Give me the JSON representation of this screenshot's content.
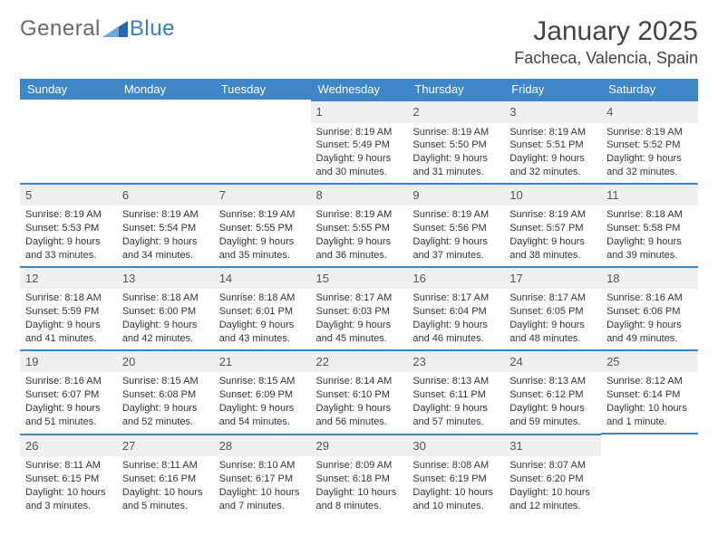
{
  "brand": {
    "part1": "General",
    "part2": "Blue"
  },
  "title": "January 2025",
  "location": "Facheca, Valencia, Spain",
  "colors": {
    "header_bg": "#3f86c7",
    "header_text": "#ffffff",
    "daynum_bg": "#eef0f2",
    "row_border": "#3f86c7",
    "text": "#333333",
    "logo_grey": "#6a6a6a",
    "logo_blue": "#3a7fc4"
  },
  "weekdays": [
    "Sunday",
    "Monday",
    "Tuesday",
    "Wednesday",
    "Thursday",
    "Friday",
    "Saturday"
  ],
  "weeks": [
    [
      null,
      null,
      null,
      {
        "n": "1",
        "sr": "Sunrise: 8:19 AM",
        "ss": "Sunset: 5:49 PM",
        "d1": "Daylight: 9 hours",
        "d2": "and 30 minutes."
      },
      {
        "n": "2",
        "sr": "Sunrise: 8:19 AM",
        "ss": "Sunset: 5:50 PM",
        "d1": "Daylight: 9 hours",
        "d2": "and 31 minutes."
      },
      {
        "n": "3",
        "sr": "Sunrise: 8:19 AM",
        "ss": "Sunset: 5:51 PM",
        "d1": "Daylight: 9 hours",
        "d2": "and 32 minutes."
      },
      {
        "n": "4",
        "sr": "Sunrise: 8:19 AM",
        "ss": "Sunset: 5:52 PM",
        "d1": "Daylight: 9 hours",
        "d2": "and 32 minutes."
      }
    ],
    [
      {
        "n": "5",
        "sr": "Sunrise: 8:19 AM",
        "ss": "Sunset: 5:53 PM",
        "d1": "Daylight: 9 hours",
        "d2": "and 33 minutes."
      },
      {
        "n": "6",
        "sr": "Sunrise: 8:19 AM",
        "ss": "Sunset: 5:54 PM",
        "d1": "Daylight: 9 hours",
        "d2": "and 34 minutes."
      },
      {
        "n": "7",
        "sr": "Sunrise: 8:19 AM",
        "ss": "Sunset: 5:55 PM",
        "d1": "Daylight: 9 hours",
        "d2": "and 35 minutes."
      },
      {
        "n": "8",
        "sr": "Sunrise: 8:19 AM",
        "ss": "Sunset: 5:55 PM",
        "d1": "Daylight: 9 hours",
        "d2": "and 36 minutes."
      },
      {
        "n": "9",
        "sr": "Sunrise: 8:19 AM",
        "ss": "Sunset: 5:56 PM",
        "d1": "Daylight: 9 hours",
        "d2": "and 37 minutes."
      },
      {
        "n": "10",
        "sr": "Sunrise: 8:19 AM",
        "ss": "Sunset: 5:57 PM",
        "d1": "Daylight: 9 hours",
        "d2": "and 38 minutes."
      },
      {
        "n": "11",
        "sr": "Sunrise: 8:18 AM",
        "ss": "Sunset: 5:58 PM",
        "d1": "Daylight: 9 hours",
        "d2": "and 39 minutes."
      }
    ],
    [
      {
        "n": "12",
        "sr": "Sunrise: 8:18 AM",
        "ss": "Sunset: 5:59 PM",
        "d1": "Daylight: 9 hours",
        "d2": "and 41 minutes."
      },
      {
        "n": "13",
        "sr": "Sunrise: 8:18 AM",
        "ss": "Sunset: 6:00 PM",
        "d1": "Daylight: 9 hours",
        "d2": "and 42 minutes."
      },
      {
        "n": "14",
        "sr": "Sunrise: 8:18 AM",
        "ss": "Sunset: 6:01 PM",
        "d1": "Daylight: 9 hours",
        "d2": "and 43 minutes."
      },
      {
        "n": "15",
        "sr": "Sunrise: 8:17 AM",
        "ss": "Sunset: 6:03 PM",
        "d1": "Daylight: 9 hours",
        "d2": "and 45 minutes."
      },
      {
        "n": "16",
        "sr": "Sunrise: 8:17 AM",
        "ss": "Sunset: 6:04 PM",
        "d1": "Daylight: 9 hours",
        "d2": "and 46 minutes."
      },
      {
        "n": "17",
        "sr": "Sunrise: 8:17 AM",
        "ss": "Sunset: 6:05 PM",
        "d1": "Daylight: 9 hours",
        "d2": "and 48 minutes."
      },
      {
        "n": "18",
        "sr": "Sunrise: 8:16 AM",
        "ss": "Sunset: 6:06 PM",
        "d1": "Daylight: 9 hours",
        "d2": "and 49 minutes."
      }
    ],
    [
      {
        "n": "19",
        "sr": "Sunrise: 8:16 AM",
        "ss": "Sunset: 6:07 PM",
        "d1": "Daylight: 9 hours",
        "d2": "and 51 minutes."
      },
      {
        "n": "20",
        "sr": "Sunrise: 8:15 AM",
        "ss": "Sunset: 6:08 PM",
        "d1": "Daylight: 9 hours",
        "d2": "and 52 minutes."
      },
      {
        "n": "21",
        "sr": "Sunrise: 8:15 AM",
        "ss": "Sunset: 6:09 PM",
        "d1": "Daylight: 9 hours",
        "d2": "and 54 minutes."
      },
      {
        "n": "22",
        "sr": "Sunrise: 8:14 AM",
        "ss": "Sunset: 6:10 PM",
        "d1": "Daylight: 9 hours",
        "d2": "and 56 minutes."
      },
      {
        "n": "23",
        "sr": "Sunrise: 8:13 AM",
        "ss": "Sunset: 6:11 PM",
        "d1": "Daylight: 9 hours",
        "d2": "and 57 minutes."
      },
      {
        "n": "24",
        "sr": "Sunrise: 8:13 AM",
        "ss": "Sunset: 6:12 PM",
        "d1": "Daylight: 9 hours",
        "d2": "and 59 minutes."
      },
      {
        "n": "25",
        "sr": "Sunrise: 8:12 AM",
        "ss": "Sunset: 6:14 PM",
        "d1": "Daylight: 10 hours",
        "d2": "and 1 minute."
      }
    ],
    [
      {
        "n": "26",
        "sr": "Sunrise: 8:11 AM",
        "ss": "Sunset: 6:15 PM",
        "d1": "Daylight: 10 hours",
        "d2": "and 3 minutes."
      },
      {
        "n": "27",
        "sr": "Sunrise: 8:11 AM",
        "ss": "Sunset: 6:16 PM",
        "d1": "Daylight: 10 hours",
        "d2": "and 5 minutes."
      },
      {
        "n": "28",
        "sr": "Sunrise: 8:10 AM",
        "ss": "Sunset: 6:17 PM",
        "d1": "Daylight: 10 hours",
        "d2": "and 7 minutes."
      },
      {
        "n": "29",
        "sr": "Sunrise: 8:09 AM",
        "ss": "Sunset: 6:18 PM",
        "d1": "Daylight: 10 hours",
        "d2": "and 8 minutes."
      },
      {
        "n": "30",
        "sr": "Sunrise: 8:08 AM",
        "ss": "Sunset: 6:19 PM",
        "d1": "Daylight: 10 hours",
        "d2": "and 10 minutes."
      },
      {
        "n": "31",
        "sr": "Sunrise: 8:07 AM",
        "ss": "Sunset: 6:20 PM",
        "d1": "Daylight: 10 hours",
        "d2": "and 12 minutes."
      },
      null
    ]
  ]
}
